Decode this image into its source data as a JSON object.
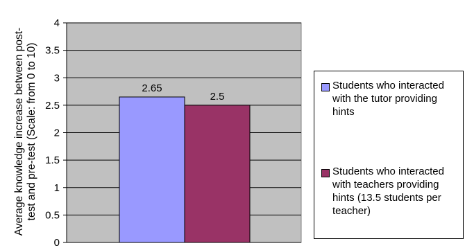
{
  "chart_data": {
    "type": "bar",
    "title": "",
    "xlabel": "",
    "ylabel_lines": [
      "Average knowledge increase between post-",
      "test and pre-test (Scale: from 0 to 10)"
    ],
    "ylim": [
      0,
      4
    ],
    "yticks": [
      "0",
      "0.5",
      "1",
      "1.5",
      "2",
      "2.5",
      "3",
      "3.5",
      "4"
    ],
    "grid": true,
    "legend_position": "right",
    "plot_background": "#c0c0c0",
    "series": [
      {
        "name": "Students who interacted with the tutor providing hints",
        "value": 2.65,
        "label": "2.65",
        "color": "#9999ff"
      },
      {
        "name": "Students who interacted with teachers providing hints (13.5 students per teacher)",
        "value": 2.5,
        "label": "2.5",
        "color": "#993366"
      }
    ]
  },
  "legend": {
    "items": [
      {
        "lines": [
          "Students who interacted",
          "with the tutor providing",
          "hints"
        ]
      },
      {
        "lines": [
          "Students who interacted",
          "with teachers providing",
          "hints (13.5 students per",
          "teacher)"
        ]
      }
    ]
  }
}
